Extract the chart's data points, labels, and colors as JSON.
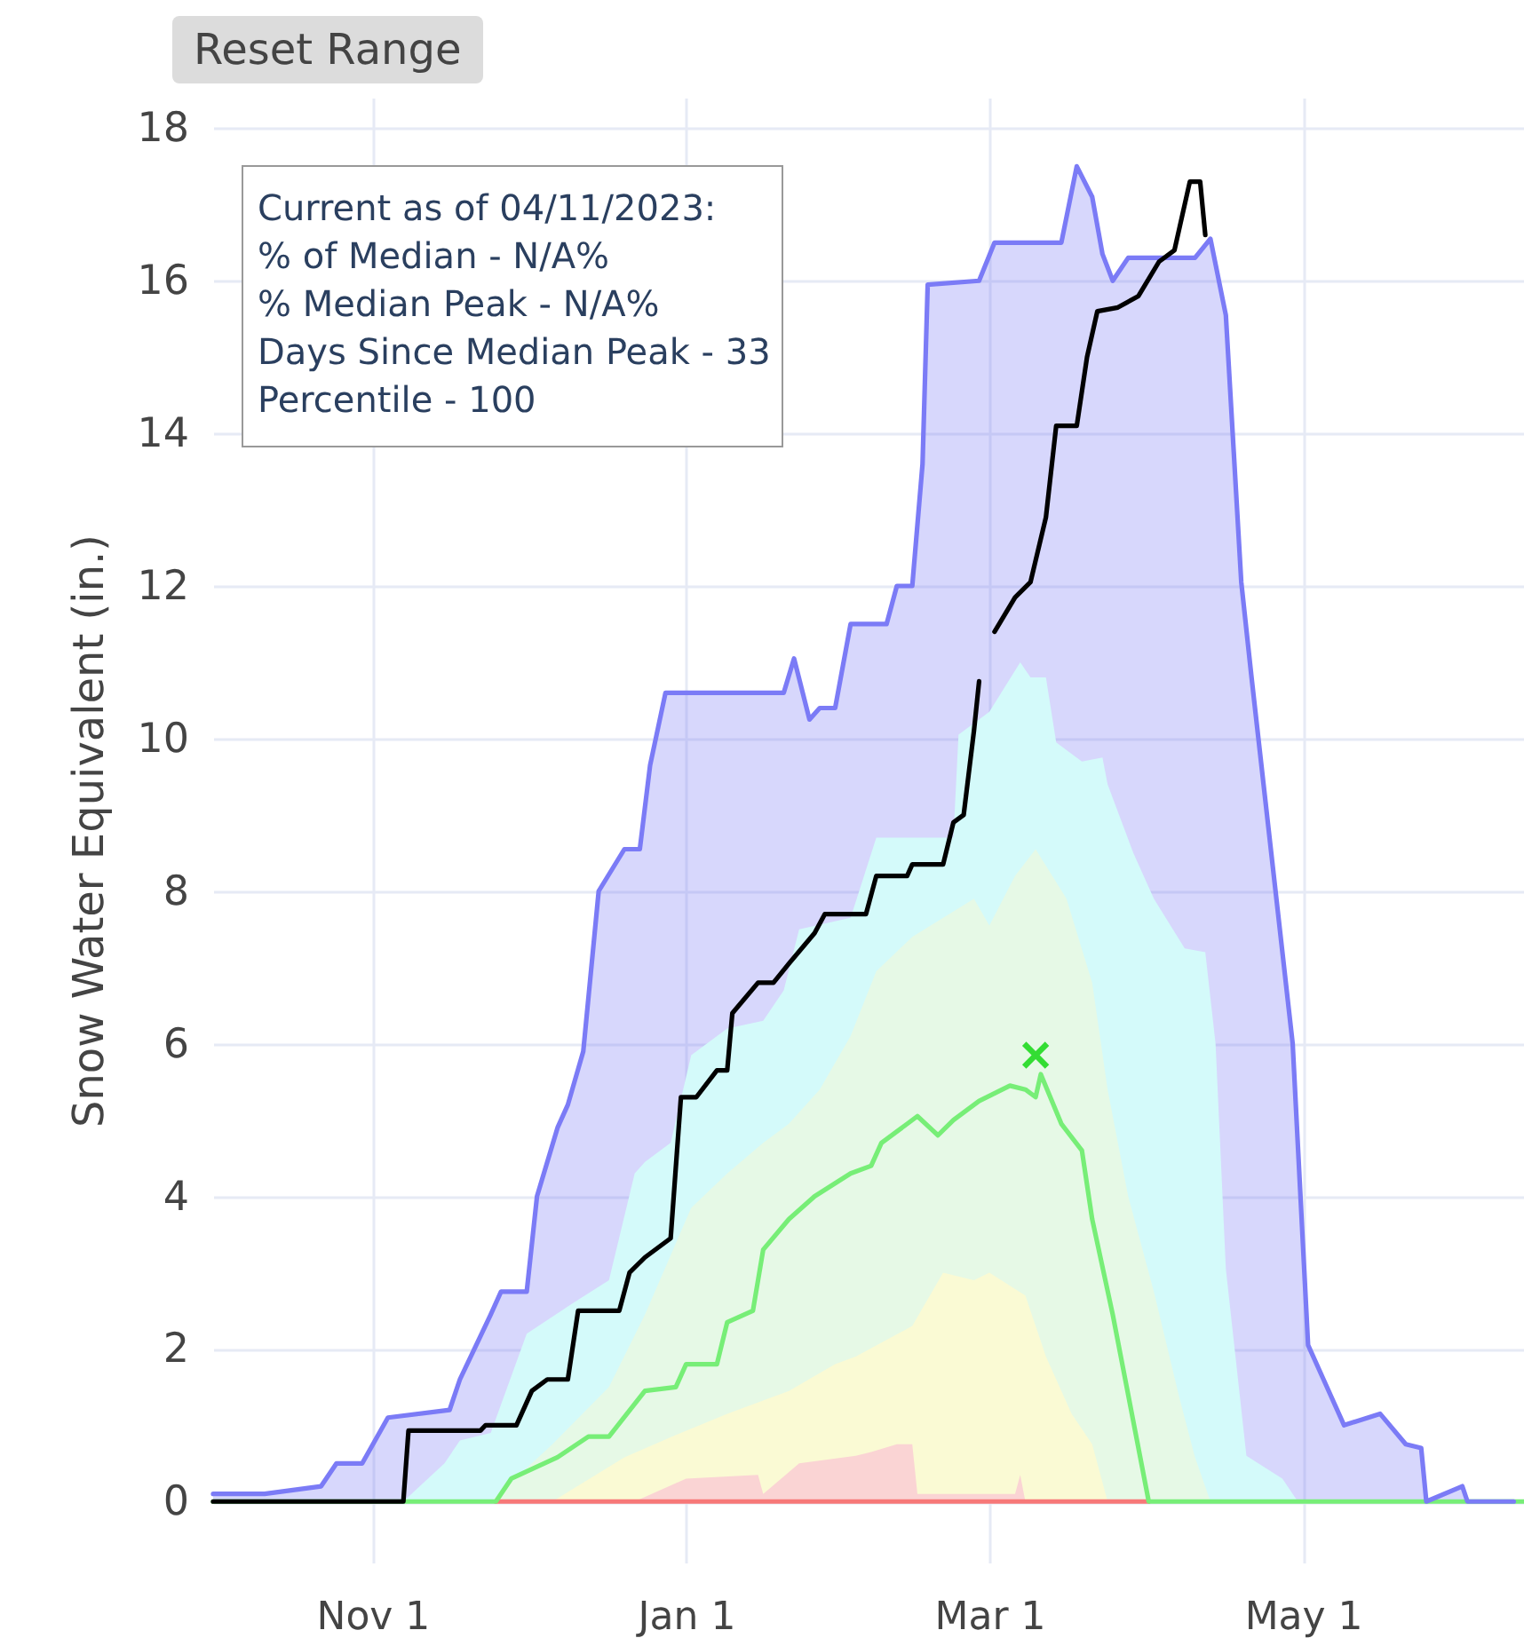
{
  "chart_data": {
    "type": "area",
    "ylabel": "Snow Water Equivalent (in.)",
    "annotations": [
      "Reset Range",
      "Current as of 04/11/2023:",
      "% of Median - N/A%",
      "% Median Peak - N/A%",
      "Days Since Median Peak - 33",
      "Percentile - 100"
    ],
    "xlim": [
      "2022-10-01",
      "2023-06-13"
    ],
    "xticks": [
      {
        "value": "2022-11-01",
        "label": "Nov 1"
      },
      {
        "value": "2023-01-01",
        "label": "Jan 1"
      },
      {
        "value": "2023-03-01",
        "label": "Mar 1"
      },
      {
        "value": "2023-05-01",
        "label": "May 1"
      }
    ],
    "ylim": [
      -0.8,
      18.4
    ],
    "yticks": [
      0,
      2,
      4,
      6,
      8,
      10,
      12,
      14,
      16,
      18
    ],
    "grid": true,
    "series": [
      {
        "color": "#d4fafa",
        "x": [
          "2022-11-07",
          "2022-11-15",
          "2022-11-18",
          "2022-11-24",
          "2022-12-01",
          "2022-12-10",
          "2022-12-17",
          "2022-12-22",
          "2022-12-24",
          "2022-12-29",
          "2023-01-02",
          "2023-01-09",
          "2023-01-16",
          "2023-01-20",
          "2023-01-23",
          "2023-02-02",
          "2023-02-07",
          "2023-02-22",
          "2023-02-23",
          "2023-03-01",
          "2023-03-07",
          "2023-03-09",
          "2023-03-12",
          "2023-03-14",
          "2023-03-19",
          "2023-03-23",
          "2023-03-24",
          "2023-03-29",
          "2023-04-02",
          "2023-04-08",
          "2023-04-12",
          "2023-04-14",
          "2023-04-16",
          "2023-04-20",
          "2023-04-27",
          "2023-04-30"
        ],
        "values": [
          0,
          0.5,
          0.8,
          0.9,
          2.2,
          2.6,
          2.9,
          4.3,
          4.45,
          4.7,
          5.85,
          6.2,
          6.3,
          6.7,
          7.5,
          7.65,
          8.7,
          8.7,
          10.05,
          10.35,
          11.0,
          10.8,
          10.8,
          9.95,
          9.7,
          9.75,
          9.4,
          8.5,
          7.9,
          7.25,
          7.2,
          6.0,
          3.05,
          0.6,
          0.3,
          0
        ]
      },
      {
        "color": "#e6f9e6",
        "x": [
          "2022-11-24",
          "2022-12-06",
          "2022-12-17",
          "2022-12-24",
          "2023-01-02",
          "2023-01-09",
          "2023-01-16",
          "2023-01-21",
          "2023-01-27",
          "2023-02-02",
          "2023-02-07",
          "2023-02-14",
          "2023-02-26",
          "2023-03-01",
          "2023-03-06",
          "2023-03-10",
          "2023-03-16",
          "2023-03-21",
          "2023-03-24",
          "2023-03-28",
          "2023-04-02",
          "2023-04-07",
          "2023-04-10",
          "2023-04-13"
        ],
        "values": [
          0,
          0.75,
          1.5,
          2.45,
          3.85,
          4.3,
          4.7,
          4.95,
          5.4,
          6.1,
          6.95,
          7.4,
          7.9,
          7.55,
          8.2,
          8.55,
          7.9,
          6.8,
          5.4,
          4.0,
          2.75,
          1.35,
          0.58,
          0
        ]
      },
      {
        "color": "#fafad4",
        "x": [
          "2022-12-06",
          "2022-12-20",
          "2022-12-31",
          "2023-01-09",
          "2023-01-21",
          "2023-01-30",
          "2023-02-03",
          "2023-02-14",
          "2023-02-20",
          "2023-02-26",
          "2023-03-01",
          "2023-03-08",
          "2023-03-12",
          "2023-03-17",
          "2023-03-21",
          "2023-03-24"
        ],
        "values": [
          0,
          0.58,
          0.9,
          1.15,
          1.45,
          1.8,
          1.9,
          2.3,
          3.0,
          2.9,
          3.0,
          2.7,
          1.9,
          1.15,
          0.75,
          0
        ]
      },
      {
        "color": "#fad4d4",
        "x": [
          "2022-12-22",
          "2023-01-01",
          "2023-01-15",
          "2023-01-16",
          "2023-01-23",
          "2023-02-03",
          "2023-02-06",
          "2023-02-11",
          "2023-02-14",
          "2023-02-15",
          "2023-03-06",
          "2023-03-07",
          "2023-03-08"
        ],
        "values": [
          0,
          0.3,
          0.35,
          0.1,
          0.5,
          0.6,
          0.65,
          0.75,
          0.75,
          0.1,
          0.1,
          0.35,
          0
        ]
      },
      {
        "type": "line",
        "color": "#f77878",
        "x": [
          "2022-11-25",
          "2022-12-15",
          "2023-01-15",
          "2023-02-15",
          "2023-03-15",
          "2023-04-01"
        ],
        "values": [
          0,
          0,
          0,
          0,
          0,
          0
        ]
      },
      {
        "type": "line",
        "color": "#77ee77",
        "x": [
          "2022-10-01",
          "2022-11-25",
          "2022-11-28",
          "2022-12-07",
          "2022-12-13",
          "2022-12-17",
          "2022-12-24",
          "2022-12-30",
          "2023-01-01",
          "2023-01-07",
          "2023-01-09",
          "2023-01-14",
          "2023-01-16",
          "2023-01-21",
          "2023-01-26",
          "2023-02-02",
          "2023-02-06",
          "2023-02-08",
          "2023-02-15",
          "2023-02-19",
          "2023-02-22",
          "2023-02-27",
          "2023-03-05",
          "2023-03-08",
          "2023-03-10",
          "2023-03-11",
          "2023-03-15",
          "2023-03-19",
          "2023-03-21",
          "2023-03-25",
          "2023-03-29",
          "2023-04-01",
          "2023-06-13"
        ],
        "values": [
          0,
          0,
          0.3,
          0.58,
          0.85,
          0.85,
          1.45,
          1.5,
          1.8,
          1.8,
          2.35,
          2.5,
          3.3,
          3.7,
          4.0,
          4.3,
          4.4,
          4.7,
          5.05,
          4.8,
          5.0,
          5.25,
          5.45,
          5.4,
          5.3,
          5.6,
          4.95,
          4.6,
          3.7,
          2.45,
          1.05,
          0,
          0
        ]
      },
      {
        "type": "line",
        "color": "#7b7bf6",
        "x": [
          "2022-10-01",
          "2022-10-11",
          "2022-10-22",
          "2022-10-25",
          "2022-10-30",
          "2022-11-04",
          "2022-11-16",
          "2022-11-18",
          "2022-11-24",
          "2022-11-26",
          "2022-12-01",
          "2022-12-03",
          "2022-12-07",
          "2022-12-09",
          "2022-12-12",
          "2022-12-15",
          "2022-12-20",
          "2022-12-23",
          "2022-12-25",
          "2022-12-28",
          "2023-01-20",
          "2023-01-22",
          "2023-01-25",
          "2023-01-27",
          "2023-01-30",
          "2023-02-02",
          "2023-02-09",
          "2023-02-11",
          "2023-02-14",
          "2023-02-16",
          "2023-02-17",
          "2023-02-27",
          "2023-03-02",
          "2023-03-15",
          "2023-03-18",
          "2023-03-21",
          "2023-03-23",
          "2023-03-25",
          "2023-03-28",
          "2023-04-10",
          "2023-04-13",
          "2023-04-16",
          "2023-04-19",
          "2023-04-21",
          "2023-04-29",
          "2023-05-02",
          "2023-05-05",
          "2023-05-09",
          "2023-05-16",
          "2023-05-21",
          "2023-05-24",
          "2023-05-25",
          "2023-06-01",
          "2023-06-02",
          "2023-06-11"
        ],
        "values": [
          0.1,
          0.1,
          0.2,
          0.5,
          0.5,
          1.1,
          1.2,
          1.6,
          2.45,
          2.75,
          2.75,
          4.0,
          4.9,
          5.2,
          5.9,
          8.0,
          8.55,
          8.55,
          9.65,
          10.6,
          10.6,
          11.05,
          10.25,
          10.4,
          10.4,
          11.5,
          11.5,
          12.0,
          12.0,
          13.6,
          15.95,
          16.0,
          16.5,
          16.5,
          17.5,
          17.1,
          16.35,
          16.0,
          16.3,
          16.3,
          16.55,
          15.55,
          12.05,
          10.8,
          6.0,
          2.05,
          1.6,
          1.0,
          1.15,
          0.75,
          0.7,
          0,
          0.2,
          0,
          0
        ],
        "lower": [
          0,
          0,
          0,
          0,
          0,
          0,
          0,
          0,
          0,
          0,
          0,
          0,
          0,
          0,
          0,
          0,
          0,
          0,
          0,
          0,
          0,
          0,
          0,
          0,
          0,
          0,
          0,
          0,
          0,
          0,
          0,
          0,
          0,
          0,
          0,
          0,
          0,
          0,
          0,
          0,
          0,
          0,
          0,
          0,
          0,
          0,
          0,
          0,
          0,
          0,
          0,
          0,
          0,
          0,
          0
        ],
        "upper": [
          0.1,
          0.1,
          0.2,
          0.5,
          0.5,
          1.1,
          1.2,
          1.6,
          2.45,
          2.75,
          2.75,
          4.0,
          4.9,
          5.2,
          5.9,
          8.0,
          8.55,
          8.55,
          9.65,
          10.6,
          10.6,
          11.05,
          10.25,
          10.4,
          10.4,
          11.5,
          11.5,
          12.0,
          12.0,
          13.6,
          15.95,
          16.0,
          16.5,
          16.5,
          17.5,
          17.1,
          16.35,
          16.0,
          16.3,
          16.3,
          16.55,
          15.55,
          12.05,
          10.8,
          6.0,
          2.05,
          1.6,
          1.0,
          1.15,
          0.75,
          0.7,
          0,
          0.2,
          0,
          0
        ]
      },
      {
        "type": "line",
        "color": "#000000",
        "x": [
          "2022-10-01",
          "2022-11-07",
          "2022-11-08",
          "2022-11-22",
          "2022-11-23",
          "2022-11-29",
          "2022-12-02",
          "2022-12-05",
          "2022-12-09",
          "2022-12-11",
          "2022-12-19",
          "2022-12-21",
          "2022-12-24",
          "2022-12-29",
          "2022-12-31",
          "2023-01-03",
          "2023-01-07",
          "2023-01-09",
          "2023-01-10",
          "2023-01-15",
          "2023-01-18",
          "2023-01-21",
          "2023-01-26",
          "2023-01-28",
          "2023-02-05",
          "2023-02-07",
          "2023-02-13",
          "2023-02-14",
          "2023-02-20",
          "2023-02-22",
          "2023-02-24",
          "2023-02-26",
          "2023-02-27",
          "2023-02-28",
          "2023-03-02",
          "2023-03-06",
          "2023-03-09",
          "2023-03-12",
          "2023-03-14",
          "2023-03-18",
          "2023-03-20",
          "2023-03-22",
          "2023-03-26",
          "2023-03-30",
          "2023-04-03",
          "2023-04-06",
          "2023-04-09",
          "2023-04-11",
          "2023-04-12"
        ],
        "values": [
          0,
          0,
          0.93,
          0.93,
          1.0,
          1.0,
          1.45,
          1.6,
          1.6,
          2.5,
          2.5,
          3.0,
          3.2,
          3.45,
          5.3,
          5.3,
          5.65,
          5.65,
          6.4,
          6.8,
          6.8,
          7.05,
          7.45,
          7.7,
          7.7,
          8.2,
          8.2,
          8.35,
          8.35,
          8.9,
          9.0,
          10.1,
          10.75,
          null,
          11.4,
          11.85,
          12.05,
          12.9,
          14.1,
          14.1,
          15.0,
          15.6,
          15.65,
          15.8,
          16.25,
          16.4,
          17.3,
          17.3,
          16.6
        ]
      },
      {
        "type": "scatter",
        "color": "#33dd33",
        "marker": "cross",
        "x": [
          "2023-03-10"
        ],
        "values": [
          5.85
        ]
      }
    ]
  }
}
